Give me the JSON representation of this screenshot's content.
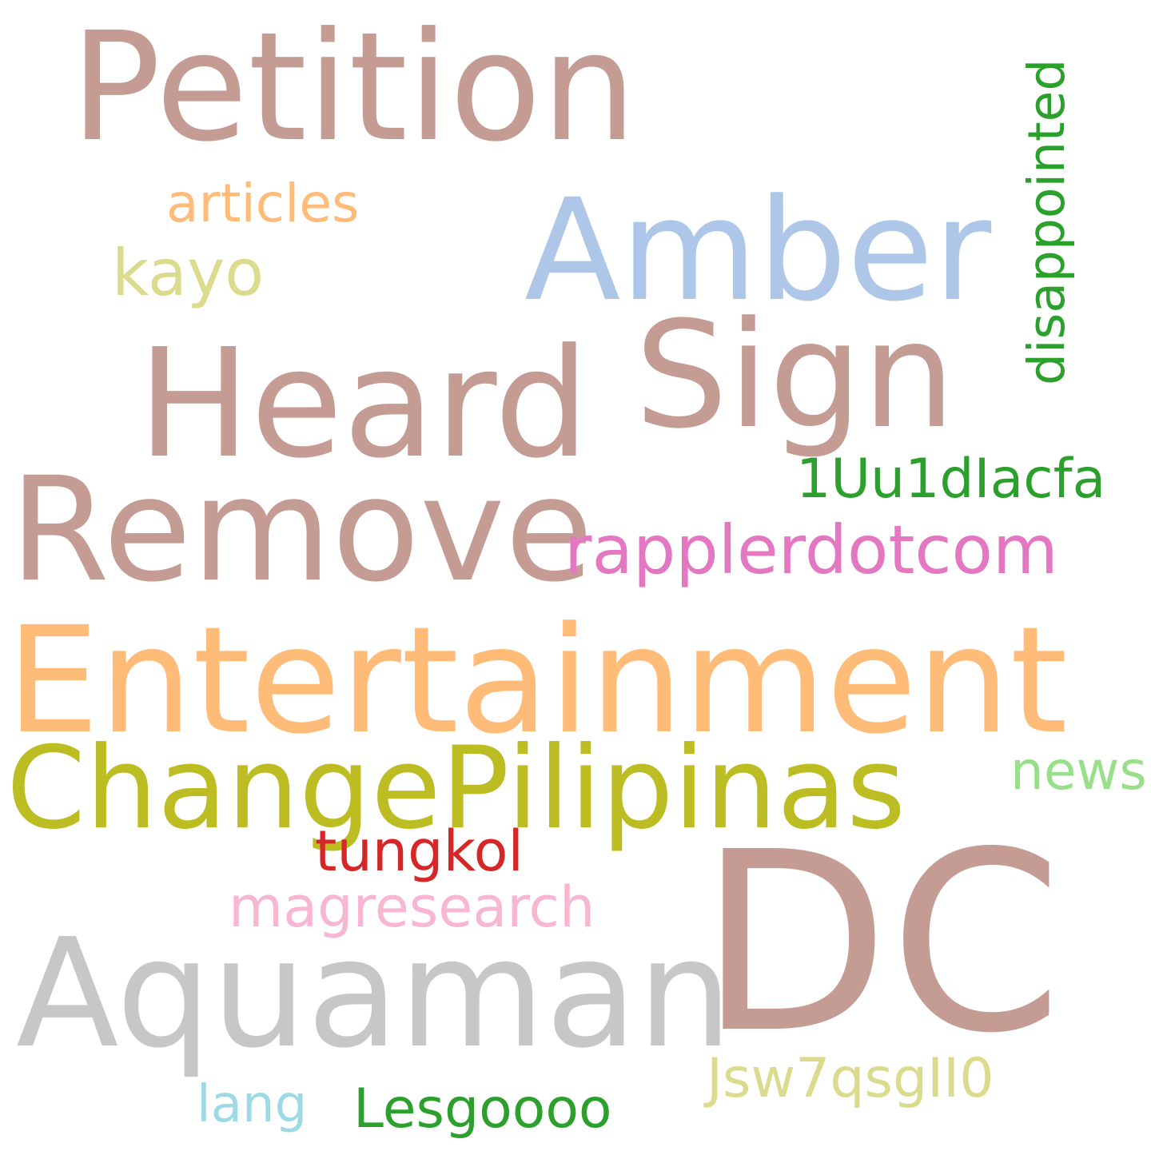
{
  "words": [
    {
      "text": "Petition",
      "color": "#c49c94"
    },
    {
      "text": "Amber",
      "color": "#aec7e8"
    },
    {
      "text": "articles",
      "color": "#ffbb78"
    },
    {
      "text": "kayo",
      "color": "#dbdb8d"
    },
    {
      "text": "disappointed",
      "color": "#2ca02c"
    },
    {
      "text": "Heard",
      "color": "#c49c94"
    },
    {
      "text": "Sign",
      "color": "#c49c94"
    },
    {
      "text": "1Uu1dIacfa",
      "color": "#2ca02c"
    },
    {
      "text": "Remove",
      "color": "#c49c94"
    },
    {
      "text": "rapplerdotcom",
      "color": "#e377c2"
    },
    {
      "text": "Entertainment",
      "color": "#ffbb78"
    },
    {
      "text": "ChangePilipinas",
      "color": "#bcbd22"
    },
    {
      "text": "news",
      "color": "#98df8a"
    },
    {
      "text": "tungkol",
      "color": "#d62728"
    },
    {
      "text": "DC",
      "color": "#c49c94"
    },
    {
      "text": "magresearch",
      "color": "#f7b6d2"
    },
    {
      "text": "Aquaman",
      "color": "#c7c7c7"
    },
    {
      "text": "Jsw7qsgII0",
      "color": "#dbdb8d"
    },
    {
      "text": "lang",
      "color": "#9edae5"
    },
    {
      "text": "Lesgoooo",
      "color": "#2ca02c"
    }
  ]
}
